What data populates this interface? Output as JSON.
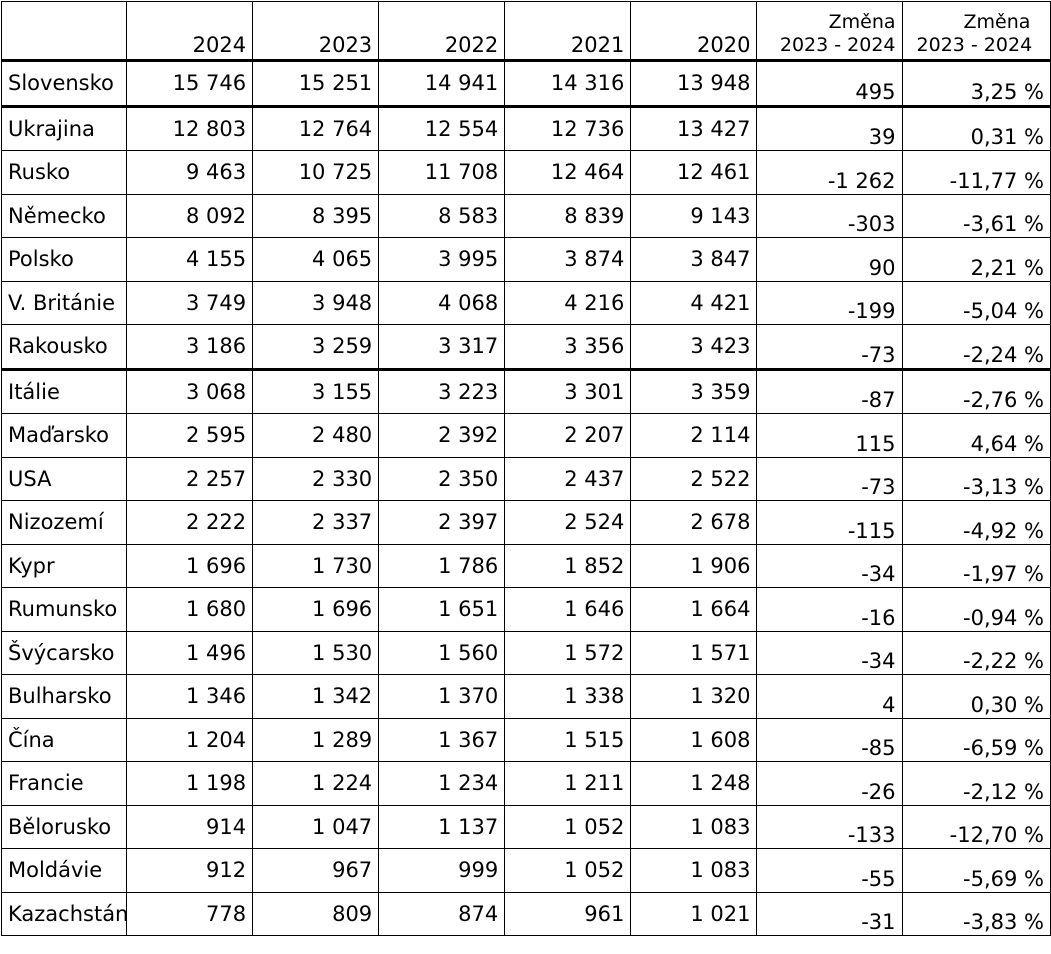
{
  "table": {
    "headers": {
      "name": "",
      "years": [
        "2024",
        "2023",
        "2022",
        "2021",
        "2020"
      ],
      "change_abs": [
        "Změna",
        "2023 - 2024"
      ],
      "change_pct": [
        "Změna",
        "2023 - 2024"
      ]
    },
    "rows": [
      {
        "name": "Slovensko",
        "values": [
          "15 746",
          "15 251",
          "14 941",
          "14 316",
          "13 948"
        ],
        "change": "495",
        "pct": "3,25 %"
      },
      {
        "name": "Ukrajina",
        "values": [
          "12 803",
          "12 764",
          "12 554",
          "12 736",
          "13 427"
        ],
        "change": "39",
        "pct": "0,31 %"
      },
      {
        "name": "Rusko",
        "values": [
          "9 463",
          "10 725",
          "11 708",
          "12 464",
          "12 461"
        ],
        "change": "-1 262",
        "pct": "-11,77 %"
      },
      {
        "name": "Německo",
        "values": [
          "8 092",
          "8 395",
          "8 583",
          "8 839",
          "9 143"
        ],
        "change": "-303",
        "pct": "-3,61 %"
      },
      {
        "name": "Polsko",
        "values": [
          "4 155",
          "4 065",
          "3 995",
          "3 874",
          "3 847"
        ],
        "change": "90",
        "pct": "2,21 %"
      },
      {
        "name": "V. Británie",
        "values": [
          "3 749",
          "3 948",
          "4 068",
          "4 216",
          "4 421"
        ],
        "change": "-199",
        "pct": "-5,04 %"
      },
      {
        "name": "Rakousko",
        "values": [
          "3 186",
          "3 259",
          "3 317",
          "3 356",
          "3 423"
        ],
        "change": "-73",
        "pct": "-2,24 %"
      },
      {
        "name": "Itálie",
        "values": [
          "3 068",
          "3 155",
          "3 223",
          "3 301",
          "3 359"
        ],
        "change": "-87",
        "pct": "-2,76 %"
      },
      {
        "name": "Maďarsko",
        "values": [
          "2 595",
          "2 480",
          "2 392",
          "2 207",
          "2 114"
        ],
        "change": "115",
        "pct": "4,64 %"
      },
      {
        "name": "USA",
        "values": [
          "2 257",
          "2 330",
          "2 350",
          "2 437",
          "2 522"
        ],
        "change": "-73",
        "pct": "-3,13 %"
      },
      {
        "name": "Nizozemí",
        "values": [
          "2 222",
          "2 337",
          "2 397",
          "2 524",
          "2 678"
        ],
        "change": "-115",
        "pct": "-4,92 %"
      },
      {
        "name": "Kypr",
        "values": [
          "1 696",
          "1 730",
          "1 786",
          "1 852",
          "1 906"
        ],
        "change": "-34",
        "pct": "-1,97 %"
      },
      {
        "name": "Rumunsko",
        "values": [
          "1 680",
          "1 696",
          "1 651",
          "1 646",
          "1 664"
        ],
        "change": "-16",
        "pct": "-0,94 %"
      },
      {
        "name": "Švýcarsko",
        "values": [
          "1 496",
          "1 530",
          "1 560",
          "1 572",
          "1 571"
        ],
        "change": "-34",
        "pct": "-2,22 %"
      },
      {
        "name": "Bulharsko",
        "values": [
          "1 346",
          "1 342",
          "1 370",
          "1 338",
          "1 320"
        ],
        "change": "4",
        "pct": "0,30 %"
      },
      {
        "name": "Čína",
        "values": [
          "1 204",
          "1 289",
          "1 367",
          "1 515",
          "1 608"
        ],
        "change": "-85",
        "pct": "-6,59 %"
      },
      {
        "name": "Francie",
        "values": [
          "1 198",
          "1 224",
          "1 234",
          "1 211",
          "1 248"
        ],
        "change": "-26",
        "pct": "-2,12 %"
      },
      {
        "name": "Bělorusko",
        "values": [
          "914",
          "1 047",
          "1 137",
          "1 052",
          "1 083"
        ],
        "change": "-133",
        "pct": "-12,70 %"
      },
      {
        "name": "Moldávie",
        "values": [
          "912",
          "967",
          "999",
          "1 052",
          "1 083"
        ],
        "change": "-55",
        "pct": "-5,69 %"
      },
      {
        "name": "Kazachstán",
        "values": [
          "778",
          "809",
          "874",
          "961",
          "1 021"
        ],
        "change": "-31",
        "pct": "-3,83 %"
      }
    ]
  }
}
